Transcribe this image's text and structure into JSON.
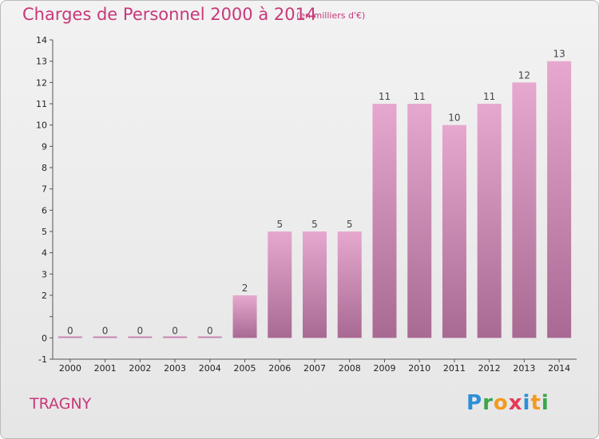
{
  "header": {
    "title": "Charges de Personnel 2000 à 2014",
    "subtitle": "(en milliers d'€)"
  },
  "footer": {
    "commune": "TRAGNY",
    "logo_text": "Proxiti"
  },
  "colors": {
    "title": "#c8387a",
    "bar_top": "#e6a8cf",
    "bar_bottom": "#a86a92",
    "background": "#ececec"
  },
  "chart_data": {
    "type": "bar",
    "categories": [
      "2000",
      "2001",
      "2002",
      "2003",
      "2004",
      "2005",
      "2006",
      "2007",
      "2008",
      "2009",
      "2010",
      "2011",
      "2012",
      "2013",
      "2014"
    ],
    "values": [
      0,
      0,
      0,
      0,
      0,
      2,
      5,
      5,
      5,
      11,
      11,
      10,
      11,
      12,
      13
    ],
    "data_labels": [
      "0",
      "0",
      "0",
      "0",
      "0",
      "2",
      "5",
      "5",
      "5",
      "11",
      "11",
      "10",
      "11",
      "12",
      "13"
    ],
    "ylim": [
      -1,
      14
    ],
    "yticks": [
      -1,
      0,
      1,
      2,
      3,
      4,
      5,
      6,
      7,
      8,
      9,
      10,
      11,
      12,
      13,
      14
    ],
    "ytick_labels": [
      "-1",
      "0",
      "",
      "2",
      "3",
      "4",
      "5",
      "6",
      "7",
      "8",
      "9",
      "10",
      "11",
      "12",
      "13",
      "14"
    ],
    "grid": false,
    "title": "Charges de Personnel 2000 à 2014",
    "subtitle": "(en milliers d'€)"
  }
}
